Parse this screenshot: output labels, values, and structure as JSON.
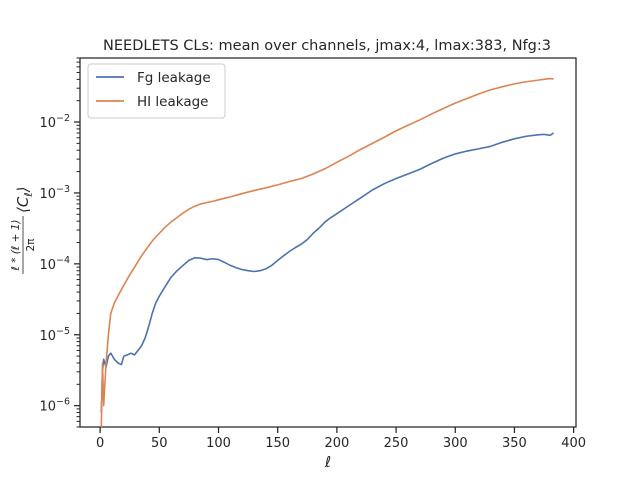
{
  "chart_data": {
    "type": "line",
    "title": "NEEDLETS CLs: mean over channels, jmax:4, lmax:383, Nfg:3",
    "xlabel": "ℓ",
    "ylabel": {
      "prefix": "ℓ * (ℓ + 1)",
      "denominator": "2π",
      "suffix": "⟨C",
      "subscript": "ℓ",
      "close": "⟩"
    },
    "xlim": [
      -17,
      402
    ],
    "ylim": [
      5e-07,
      0.08
    ],
    "yscale": "log",
    "grid": false,
    "legend_position": "top-left",
    "xticks": [
      0,
      50,
      100,
      150,
      200,
      250,
      300,
      350,
      400
    ],
    "xtick_labels": [
      "0",
      "50",
      "100",
      "150",
      "200",
      "250",
      "300",
      "350",
      "400"
    ],
    "yticks": [
      {
        "value": 1e-06,
        "base": "10",
        "exp": "−6"
      },
      {
        "value": 1e-05,
        "base": "10",
        "exp": "−5"
      },
      {
        "value": 0.0001,
        "base": "10",
        "exp": "−4"
      },
      {
        "value": 0.001,
        "base": "10",
        "exp": "−3"
      },
      {
        "value": 0.01,
        "base": "10",
        "exp": "−2"
      }
    ],
    "series": [
      {
        "name": "Fg leakage",
        "color": "#4c72b0",
        "points": [
          [
            1,
            8e-07
          ],
          [
            2,
            3e-06
          ],
          [
            3,
            4.5e-06
          ],
          [
            5,
            3.5e-06
          ],
          [
            7,
            5e-06
          ],
          [
            9,
            5.5e-06
          ],
          [
            12,
            4.5e-06
          ],
          [
            15,
            4e-06
          ],
          [
            18,
            3.8e-06
          ],
          [
            20,
            5e-06
          ],
          [
            23,
            5.2e-06
          ],
          [
            26,
            5.5e-06
          ],
          [
            29,
            5.2e-06
          ],
          [
            32,
            6e-06
          ],
          [
            35,
            7e-06
          ],
          [
            38,
            9e-06
          ],
          [
            41,
            1.3e-05
          ],
          [
            44,
            2e-05
          ],
          [
            47,
            2.8e-05
          ],
          [
            50,
            3.5e-05
          ],
          [
            55,
            4.8e-05
          ],
          [
            60,
            6.5e-05
          ],
          [
            65,
            8e-05
          ],
          [
            70,
            9.5e-05
          ],
          [
            75,
            0.000112
          ],
          [
            80,
            0.000122
          ],
          [
            85,
            0.00012
          ],
          [
            90,
            0.000115
          ],
          [
            95,
            0.000118
          ],
          [
            100,
            0.000115
          ],
          [
            105,
            0.000105
          ],
          [
            110,
            9.5e-05
          ],
          [
            115,
            8.8e-05
          ],
          [
            120,
            8.3e-05
          ],
          [
            125,
            8e-05
          ],
          [
            130,
            7.8e-05
          ],
          [
            135,
            8e-05
          ],
          [
            140,
            8.5e-05
          ],
          [
            145,
            9.5e-05
          ],
          [
            150,
            0.000112
          ],
          [
            155,
            0.00013
          ],
          [
            160,
            0.00015
          ],
          [
            165,
            0.00017
          ],
          [
            170,
            0.00019
          ],
          [
            175,
            0.00022
          ],
          [
            180,
            0.00027
          ],
          [
            185,
            0.00032
          ],
          [
            190,
            0.00039
          ],
          [
            195,
            0.00045
          ],
          [
            200,
            0.00051
          ],
          [
            210,
            0.00066
          ],
          [
            220,
            0.00085
          ],
          [
            230,
            0.0011
          ],
          [
            240,
            0.00135
          ],
          [
            250,
            0.0016
          ],
          [
            260,
            0.00185
          ],
          [
            270,
            0.00215
          ],
          [
            280,
            0.0026
          ],
          [
            290,
            0.0031
          ],
          [
            300,
            0.00355
          ],
          [
            310,
            0.0039
          ],
          [
            320,
            0.0042
          ],
          [
            330,
            0.00455
          ],
          [
            340,
            0.0052
          ],
          [
            350,
            0.0058
          ],
          [
            360,
            0.0063
          ],
          [
            370,
            0.0066
          ],
          [
            375,
            0.0067
          ],
          [
            380,
            0.0065
          ],
          [
            383,
            0.007
          ]
        ]
      },
      {
        "name": "HI leakage",
        "color": "#dd8452",
        "points": [
          [
            1,
            5e-07
          ],
          [
            2,
            4e-06
          ],
          [
            3,
            1e-06
          ],
          [
            5,
            4e-06
          ],
          [
            7,
            1e-05
          ],
          [
            9,
            2e-05
          ],
          [
            12,
            2.8e-05
          ],
          [
            15,
            3.5e-05
          ],
          [
            20,
            5e-05
          ],
          [
            25,
            7e-05
          ],
          [
            30,
            9.5e-05
          ],
          [
            35,
            0.00013
          ],
          [
            40,
            0.00017
          ],
          [
            45,
            0.00022
          ],
          [
            50,
            0.00027
          ],
          [
            55,
            0.00033
          ],
          [
            60,
            0.00039
          ],
          [
            65,
            0.00045
          ],
          [
            70,
            0.00052
          ],
          [
            75,
            0.00059
          ],
          [
            80,
            0.00065
          ],
          [
            85,
            0.0007
          ],
          [
            90,
            0.00073
          ],
          [
            95,
            0.00076
          ],
          [
            100,
            0.0008
          ],
          [
            105,
            0.00084
          ],
          [
            110,
            0.00088
          ],
          [
            115,
            0.00093
          ],
          [
            120,
            0.00098
          ],
          [
            130,
            0.00108
          ],
          [
            140,
            0.00118
          ],
          [
            150,
            0.0013
          ],
          [
            160,
            0.00145
          ],
          [
            170,
            0.0016
          ],
          [
            180,
            0.00185
          ],
          [
            190,
            0.0022
          ],
          [
            200,
            0.0027
          ],
          [
            210,
            0.0033
          ],
          [
            220,
            0.0041
          ],
          [
            230,
            0.005
          ],
          [
            240,
            0.0061
          ],
          [
            250,
            0.0075
          ],
          [
            260,
            0.009
          ],
          [
            270,
            0.0107
          ],
          [
            280,
            0.013
          ],
          [
            290,
            0.0155
          ],
          [
            300,
            0.0185
          ],
          [
            310,
            0.0215
          ],
          [
            320,
            0.025
          ],
          [
            330,
            0.0285
          ],
          [
            340,
            0.0315
          ],
          [
            350,
            0.0345
          ],
          [
            360,
            0.037
          ],
          [
            370,
            0.039
          ],
          [
            375,
            0.04
          ],
          [
            380,
            0.041
          ],
          [
            383,
            0.0405
          ]
        ]
      }
    ]
  }
}
